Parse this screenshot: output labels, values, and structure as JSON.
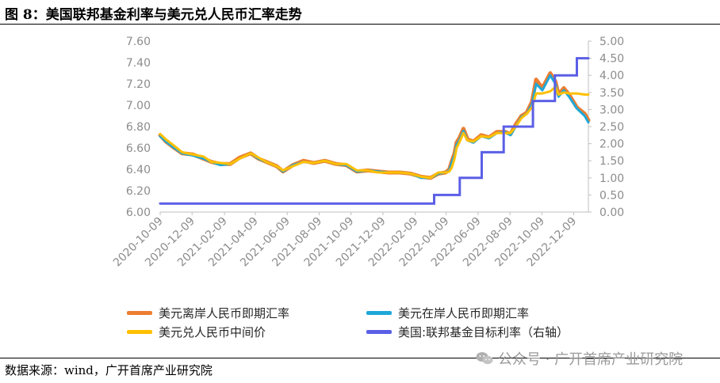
{
  "figure": {
    "title": "图 8：美国联邦基金利率与美元兑人民币汇率走势",
    "source": "数据来源：wind，广开首席产业研究院",
    "watermark": "公众号 · 广开首席产业研究院",
    "watermark_icon": "wechat-icon"
  },
  "colors": {
    "offshore": "#ED7D31",
    "onshore": "#1FA8D8",
    "central": "#FFC000",
    "fedrate": "#5B5FE6",
    "axis_text": "#8c8c8c"
  },
  "chart_data": {
    "type": "line",
    "title": "",
    "x_ticks": [
      "2020-10-09",
      "2020-12-09",
      "2021-02-09",
      "2021-04-09",
      "2021-06-09",
      "2021-08-09",
      "2021-10-09",
      "2021-12-09",
      "2022-02-09",
      "2022-04-09",
      "2022-06-09",
      "2022-08-09",
      "2022-10-09",
      "2022-12-09"
    ],
    "x_range": [
      "2020-10-09",
      "2023-01-06"
    ],
    "y_left": {
      "ticks": [
        "6.00",
        "6.20",
        "6.40",
        "6.60",
        "6.80",
        "7.00",
        "7.20",
        "7.40",
        "7.60"
      ],
      "range": [
        6.0,
        7.6
      ]
    },
    "y_right": {
      "ticks": [
        "0.00",
        "0.50",
        "1.00",
        "1.50",
        "2.00",
        "2.50",
        "3.00",
        "3.50",
        "4.00",
        "4.50",
        "5.00"
      ],
      "range": [
        0.0,
        5.0
      ]
    },
    "legend_position": "bottom",
    "series": [
      {
        "name": "美元离岸人民币即期汇率",
        "axis": "left",
        "key": "offshore",
        "points": [
          [
            "2020-10-09",
            6.72
          ],
          [
            "2020-10-20",
            6.66
          ],
          [
            "2020-11-05",
            6.6
          ],
          [
            "2020-11-20",
            6.55
          ],
          [
            "2020-12-10",
            6.54
          ],
          [
            "2020-12-31",
            6.5
          ],
          [
            "2021-01-15",
            6.47
          ],
          [
            "2021-02-01",
            6.45
          ],
          [
            "2021-02-20",
            6.45
          ],
          [
            "2021-03-10",
            6.51
          ],
          [
            "2021-03-31",
            6.55
          ],
          [
            "2021-04-15",
            6.5
          ],
          [
            "2021-04-30",
            6.47
          ],
          [
            "2021-05-20",
            6.43
          ],
          [
            "2021-06-01",
            6.38
          ],
          [
            "2021-06-20",
            6.44
          ],
          [
            "2021-07-10",
            6.48
          ],
          [
            "2021-07-30",
            6.46
          ],
          [
            "2021-08-20",
            6.48
          ],
          [
            "2021-09-10",
            6.45
          ],
          [
            "2021-09-30",
            6.44
          ],
          [
            "2021-10-20",
            6.38
          ],
          [
            "2021-11-10",
            6.39
          ],
          [
            "2021-11-30",
            6.38
          ],
          [
            "2021-12-20",
            6.37
          ],
          [
            "2022-01-10",
            6.37
          ],
          [
            "2022-01-31",
            6.36
          ],
          [
            "2022-02-20",
            6.33
          ],
          [
            "2022-03-10",
            6.32
          ],
          [
            "2022-03-25",
            6.36
          ],
          [
            "2022-04-08",
            6.37
          ],
          [
            "2022-04-15",
            6.4
          ],
          [
            "2022-04-20",
            6.48
          ],
          [
            "2022-04-25",
            6.55
          ],
          [
            "2022-04-29",
            6.65
          ],
          [
            "2022-05-05",
            6.7
          ],
          [
            "2022-05-12",
            6.78
          ],
          [
            "2022-05-20",
            6.68
          ],
          [
            "2022-05-31",
            6.66
          ],
          [
            "2022-06-15",
            6.72
          ],
          [
            "2022-06-30",
            6.7
          ],
          [
            "2022-07-15",
            6.75
          ],
          [
            "2022-07-31",
            6.75
          ],
          [
            "2022-08-10",
            6.73
          ],
          [
            "2022-08-20",
            6.82
          ],
          [
            "2022-08-31",
            6.9
          ],
          [
            "2022-09-10",
            6.93
          ],
          [
            "2022-09-20",
            7.03
          ],
          [
            "2022-09-28",
            7.24
          ],
          [
            "2022-10-10",
            7.16
          ],
          [
            "2022-10-25",
            7.3
          ],
          [
            "2022-11-04",
            7.22
          ],
          [
            "2022-11-10",
            7.1
          ],
          [
            "2022-11-20",
            7.16
          ],
          [
            "2022-11-30",
            7.1
          ],
          [
            "2022-12-15",
            6.98
          ],
          [
            "2022-12-30",
            6.92
          ],
          [
            "2023-01-06",
            6.86
          ]
        ]
      },
      {
        "name": "美元在岸人民币即期汇率",
        "axis": "left",
        "key": "onshore",
        "points": [
          [
            "2020-10-09",
            6.71
          ],
          [
            "2020-10-20",
            6.66
          ],
          [
            "2020-11-05",
            6.6
          ],
          [
            "2020-11-20",
            6.55
          ],
          [
            "2020-12-10",
            6.53
          ],
          [
            "2020-12-31",
            6.5
          ],
          [
            "2021-01-15",
            6.47
          ],
          [
            "2021-02-01",
            6.44
          ],
          [
            "2021-02-20",
            6.45
          ],
          [
            "2021-03-10",
            6.5
          ],
          [
            "2021-03-31",
            6.55
          ],
          [
            "2021-04-15",
            6.5
          ],
          [
            "2021-04-30",
            6.47
          ],
          [
            "2021-05-20",
            6.43
          ],
          [
            "2021-06-01",
            6.38
          ],
          [
            "2021-06-20",
            6.44
          ],
          [
            "2021-07-10",
            6.47
          ],
          [
            "2021-07-30",
            6.46
          ],
          [
            "2021-08-20",
            6.48
          ],
          [
            "2021-09-10",
            6.45
          ],
          [
            "2021-09-30",
            6.44
          ],
          [
            "2021-10-20",
            6.38
          ],
          [
            "2021-11-10",
            6.39
          ],
          [
            "2021-11-30",
            6.38
          ],
          [
            "2021-12-20",
            6.37
          ],
          [
            "2022-01-10",
            6.37
          ],
          [
            "2022-01-31",
            6.36
          ],
          [
            "2022-02-20",
            6.32
          ],
          [
            "2022-03-10",
            6.32
          ],
          [
            "2022-03-25",
            6.36
          ],
          [
            "2022-04-08",
            6.37
          ],
          [
            "2022-04-15",
            6.39
          ],
          [
            "2022-04-20",
            6.47
          ],
          [
            "2022-04-25",
            6.53
          ],
          [
            "2022-04-29",
            6.63
          ],
          [
            "2022-05-05",
            6.68
          ],
          [
            "2022-05-12",
            6.76
          ],
          [
            "2022-05-20",
            6.67
          ],
          [
            "2022-05-31",
            6.65
          ],
          [
            "2022-06-15",
            6.71
          ],
          [
            "2022-06-30",
            6.69
          ],
          [
            "2022-07-15",
            6.74
          ],
          [
            "2022-07-31",
            6.75
          ],
          [
            "2022-08-10",
            6.72
          ],
          [
            "2022-08-20",
            6.8
          ],
          [
            "2022-08-31",
            6.89
          ],
          [
            "2022-09-10",
            6.92
          ],
          [
            "2022-09-20",
            7.01
          ],
          [
            "2022-09-28",
            7.2
          ],
          [
            "2022-10-10",
            7.14
          ],
          [
            "2022-10-25",
            7.28
          ],
          [
            "2022-11-04",
            7.2
          ],
          [
            "2022-11-10",
            7.08
          ],
          [
            "2022-11-20",
            7.14
          ],
          [
            "2022-11-30",
            7.08
          ],
          [
            "2022-12-15",
            6.97
          ],
          [
            "2022-12-30",
            6.9
          ],
          [
            "2023-01-06",
            6.84
          ]
        ]
      },
      {
        "name": "美元兑人民币中间价",
        "axis": "left",
        "key": "central",
        "points": [
          [
            "2020-10-09",
            6.73
          ],
          [
            "2020-10-20",
            6.68
          ],
          [
            "2020-11-05",
            6.62
          ],
          [
            "2020-11-20",
            6.56
          ],
          [
            "2020-12-10",
            6.54
          ],
          [
            "2020-12-31",
            6.52
          ],
          [
            "2021-01-15",
            6.47
          ],
          [
            "2021-02-01",
            6.46
          ],
          [
            "2021-02-20",
            6.45
          ],
          [
            "2021-03-10",
            6.5
          ],
          [
            "2021-03-31",
            6.55
          ],
          [
            "2021-04-15",
            6.51
          ],
          [
            "2021-04-30",
            6.47
          ],
          [
            "2021-05-20",
            6.43
          ],
          [
            "2021-06-01",
            6.39
          ],
          [
            "2021-06-20",
            6.43
          ],
          [
            "2021-07-10",
            6.47
          ],
          [
            "2021-07-30",
            6.46
          ],
          [
            "2021-08-20",
            6.48
          ],
          [
            "2021-09-10",
            6.45
          ],
          [
            "2021-09-30",
            6.45
          ],
          [
            "2021-10-20",
            6.39
          ],
          [
            "2021-11-10",
            6.39
          ],
          [
            "2021-11-30",
            6.37
          ],
          [
            "2021-12-20",
            6.37
          ],
          [
            "2022-01-10",
            6.37
          ],
          [
            "2022-01-31",
            6.36
          ],
          [
            "2022-02-20",
            6.33
          ],
          [
            "2022-03-10",
            6.32
          ],
          [
            "2022-03-25",
            6.37
          ],
          [
            "2022-04-08",
            6.37
          ],
          [
            "2022-04-15",
            6.38
          ],
          [
            "2022-04-20",
            6.42
          ],
          [
            "2022-04-25",
            6.5
          ],
          [
            "2022-04-29",
            6.6
          ],
          [
            "2022-05-05",
            6.66
          ],
          [
            "2022-05-12",
            6.74
          ],
          [
            "2022-05-20",
            6.67
          ],
          [
            "2022-05-31",
            6.66
          ],
          [
            "2022-06-15",
            6.71
          ],
          [
            "2022-06-30",
            6.7
          ],
          [
            "2022-07-15",
            6.74
          ],
          [
            "2022-07-31",
            6.74
          ],
          [
            "2022-08-10",
            6.74
          ],
          [
            "2022-08-20",
            6.8
          ],
          [
            "2022-08-31",
            6.88
          ],
          [
            "2022-09-10",
            6.92
          ],
          [
            "2022-09-20",
            6.98
          ],
          [
            "2022-09-28",
            7.11
          ],
          [
            "2022-10-10",
            7.11
          ],
          [
            "2022-10-25",
            7.13
          ],
          [
            "2022-11-04",
            7.17
          ],
          [
            "2022-11-10",
            7.1
          ],
          [
            "2022-11-20",
            7.12
          ],
          [
            "2022-11-30",
            7.11
          ],
          [
            "2022-12-15",
            7.11
          ],
          [
            "2022-12-30",
            7.1
          ],
          [
            "2023-01-06",
            7.1
          ]
        ]
      },
      {
        "name": "美国:联邦基金目标利率（右轴）",
        "axis": "right",
        "key": "fedrate",
        "step": true,
        "points": [
          [
            "2020-10-09",
            0.25
          ],
          [
            "2022-03-17",
            0.25
          ],
          [
            "2022-03-17",
            0.5
          ],
          [
            "2022-05-05",
            0.5
          ],
          [
            "2022-05-05",
            1.0
          ],
          [
            "2022-06-16",
            1.0
          ],
          [
            "2022-06-16",
            1.75
          ],
          [
            "2022-07-28",
            1.75
          ],
          [
            "2022-07-28",
            2.5
          ],
          [
            "2022-09-22",
            2.5
          ],
          [
            "2022-09-22",
            3.25
          ],
          [
            "2022-11-03",
            3.25
          ],
          [
            "2022-11-03",
            4.0
          ],
          [
            "2022-12-15",
            4.0
          ],
          [
            "2022-12-15",
            4.5
          ],
          [
            "2023-01-06",
            4.5
          ]
        ]
      }
    ]
  }
}
